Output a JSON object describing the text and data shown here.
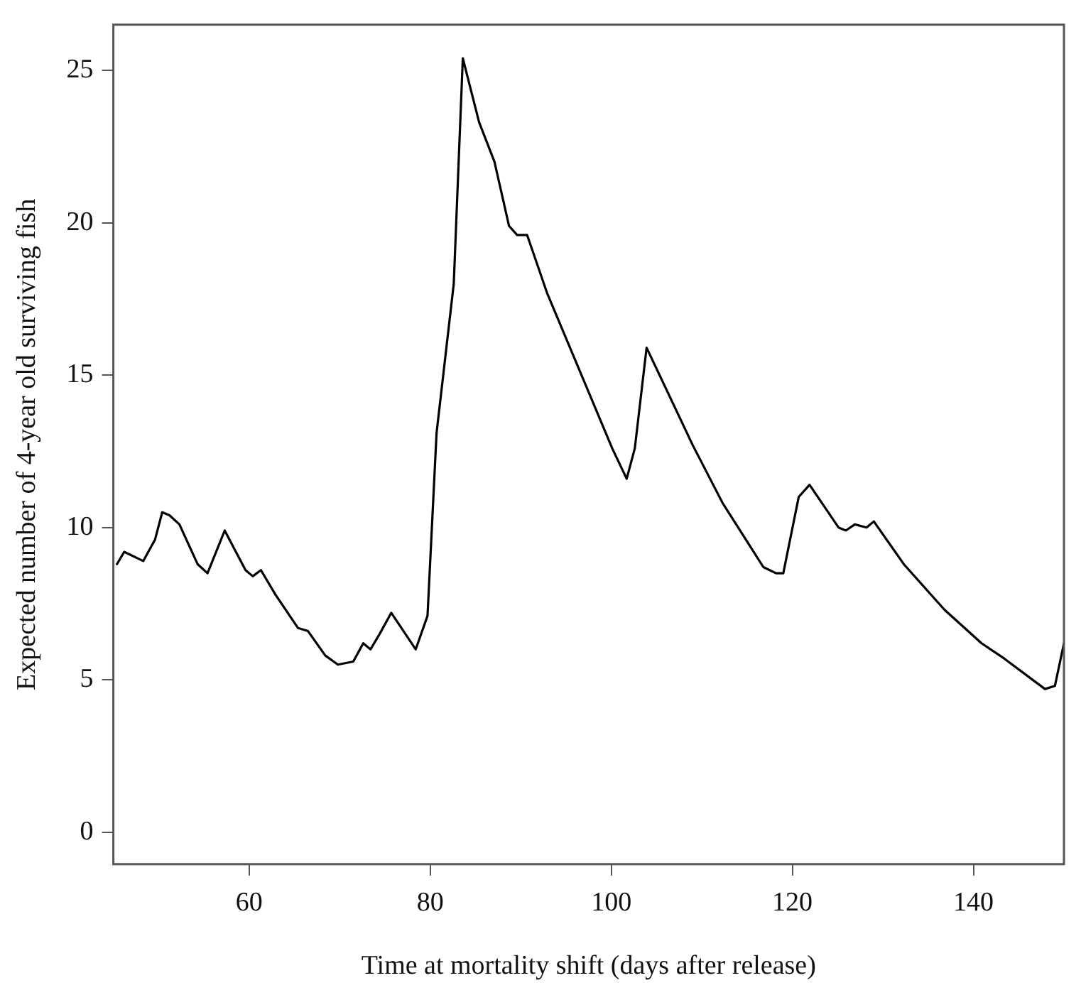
{
  "chart_data": {
    "type": "line",
    "xlabel": "Time at mortality shift (days after release)",
    "ylabel": "Expected number of 4-year old surviving fish",
    "x": [
      45.4,
      46.2,
      48.3,
      49.6,
      50.4,
      51.2,
      52.3,
      54.3,
      55.4,
      57.3,
      59.6,
      60.4,
      61.3,
      62.9,
      65.4,
      66.5,
      68.4,
      69.8,
      71.5,
      72.6,
      73.4,
      74.4,
      75.7,
      78.4,
      79.7,
      80.7,
      82.6,
      83.6,
      85.4,
      87.1,
      88.7,
      89.6,
      90.7,
      92.9,
      100.1,
      101.7,
      102.6,
      103.9,
      109,
      112.3,
      116.8,
      118.2,
      119,
      120.7,
      121.9,
      125.1,
      125.9,
      126.9,
      128.2,
      129,
      132.3,
      136.8,
      140.9,
      143.4,
      147.9,
      149,
      150
    ],
    "series": [
      {
        "color": "#000000",
        "values": [
          8.8,
          9.2,
          8.9,
          9.6,
          10.5,
          10.4,
          10.1,
          8.8,
          8.5,
          9.9,
          8.6,
          8.4,
          8.6,
          7.8,
          6.7,
          6.6,
          5.8,
          5.5,
          5.6,
          6.2,
          6.0,
          6.5,
          7.2,
          6.0,
          7.1,
          13.1,
          18.0,
          25.4,
          23.3,
          22.0,
          19.9,
          19.6,
          19.6,
          17.7,
          12.6,
          11.6,
          12.6,
          15.9,
          12.7,
          10.8,
          8.7,
          8.5,
          8.5,
          11.0,
          11.4,
          10.0,
          9.9,
          10.1,
          10.0,
          10.2,
          8.8,
          7.3,
          6.2,
          5.7,
          4.7,
          4.8,
          6.2
        ]
      }
    ],
    "xlim": [
      45,
      150
    ],
    "ylim": [
      -1.05,
      26.5
    ],
    "xticks": [
      60,
      80,
      100,
      120,
      140
    ],
    "yticks": [
      0,
      5,
      10,
      15,
      20,
      25
    ],
    "grid": false,
    "marker": "none",
    "line_style": "solid"
  }
}
